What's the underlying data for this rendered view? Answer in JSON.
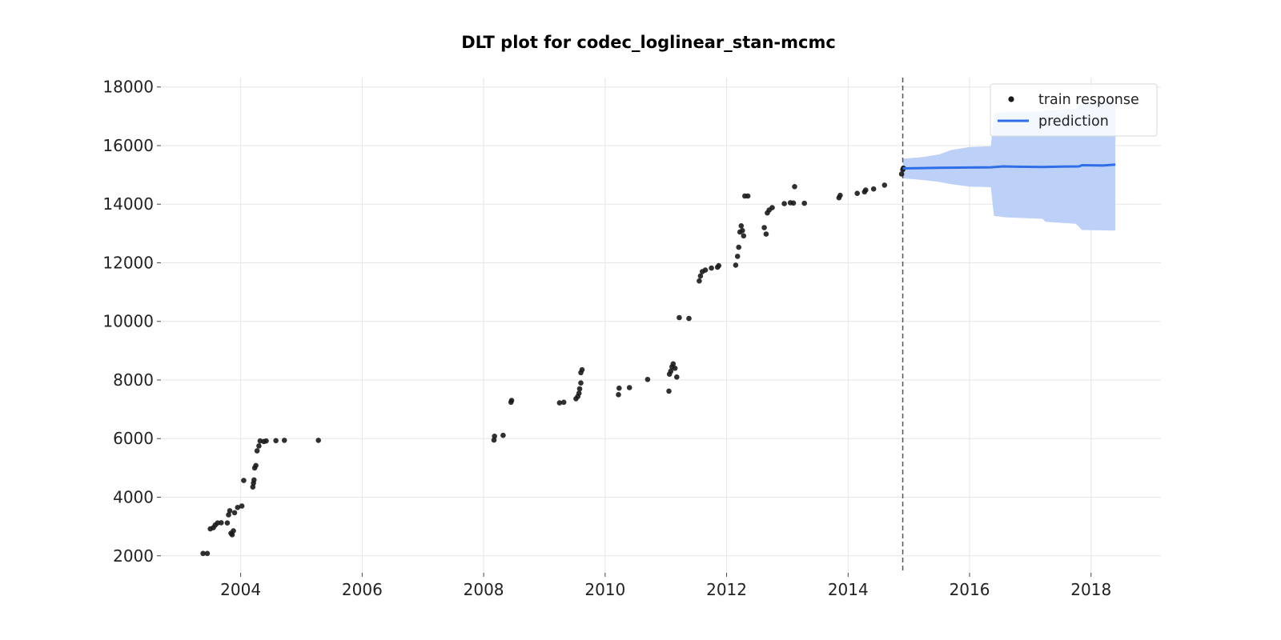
{
  "chart_data": {
    "type": "scatter",
    "title": "DLT plot for codec_loglinear_stan-mcmc",
    "xlabel": "",
    "ylabel": "",
    "xlim": [
      2002.7,
      2019.15
    ],
    "ylim": [
      1420,
      18320
    ],
    "xticks": [
      2004,
      2006,
      2008,
      2010,
      2012,
      2014,
      2016,
      2018
    ],
    "yticks": [
      2000,
      4000,
      6000,
      8000,
      10000,
      12000,
      14000,
      16000,
      18000
    ],
    "grid": true,
    "legend_position": "top-right",
    "split_line_x": 2014.9,
    "colors": {
      "points": "#1a1a1a",
      "prediction": "#2e6ee6",
      "band": "#bcd0f8",
      "split_line": "#555555",
      "grid": "#e6e6e6"
    },
    "series": [
      {
        "name": "train response",
        "type": "scatter",
        "points": [
          [
            2003.38,
            2080
          ],
          [
            2003.45,
            2080
          ],
          [
            2003.5,
            2920
          ],
          [
            2003.55,
            2960
          ],
          [
            2003.58,
            3050
          ],
          [
            2003.62,
            3120
          ],
          [
            2003.68,
            3130
          ],
          [
            2003.78,
            3120
          ],
          [
            2003.8,
            3400
          ],
          [
            2003.82,
            3540
          ],
          [
            2003.84,
            2770
          ],
          [
            2003.86,
            2720
          ],
          [
            2003.88,
            2850
          ],
          [
            2003.9,
            3470
          ],
          [
            2003.95,
            3650
          ],
          [
            2004.02,
            3700
          ],
          [
            2004.05,
            4570
          ],
          [
            2004.2,
            4350
          ],
          [
            2004.21,
            4480
          ],
          [
            2004.22,
            4590
          ],
          [
            2004.23,
            5000
          ],
          [
            2004.25,
            5080
          ],
          [
            2004.27,
            5580
          ],
          [
            2004.3,
            5750
          ],
          [
            2004.32,
            5920
          ],
          [
            2004.38,
            5900
          ],
          [
            2004.42,
            5920
          ],
          [
            2004.58,
            5930
          ],
          [
            2004.72,
            5940
          ],
          [
            2005.28,
            5940
          ],
          [
            2008.17,
            5950
          ],
          [
            2008.18,
            6080
          ],
          [
            2008.32,
            6110
          ],
          [
            2008.45,
            7240
          ],
          [
            2008.46,
            7300
          ],
          [
            2009.25,
            7220
          ],
          [
            2009.32,
            7240
          ],
          [
            2009.52,
            7360
          ],
          [
            2009.55,
            7440
          ],
          [
            2009.57,
            7550
          ],
          [
            2009.58,
            7700
          ],
          [
            2009.6,
            7900
          ],
          [
            2009.6,
            8250
          ],
          [
            2009.62,
            8350
          ],
          [
            2010.22,
            7500
          ],
          [
            2010.23,
            7720
          ],
          [
            2010.4,
            7740
          ],
          [
            2010.7,
            8020
          ],
          [
            2011.05,
            7620
          ],
          [
            2011.06,
            8200
          ],
          [
            2011.08,
            8300
          ],
          [
            2011.1,
            8450
          ],
          [
            2011.12,
            8550
          ],
          [
            2011.15,
            8400
          ],
          [
            2011.18,
            8100
          ],
          [
            2011.22,
            10130
          ],
          [
            2011.38,
            10100
          ],
          [
            2011.55,
            11380
          ],
          [
            2011.57,
            11550
          ],
          [
            2011.6,
            11700
          ],
          [
            2011.65,
            11750
          ],
          [
            2011.75,
            11820
          ],
          [
            2011.85,
            11850
          ],
          [
            2011.87,
            11900
          ],
          [
            2012.15,
            11920
          ],
          [
            2012.18,
            12220
          ],
          [
            2012.2,
            12530
          ],
          [
            2012.22,
            13050
          ],
          [
            2012.24,
            13260
          ],
          [
            2012.26,
            13100
          ],
          [
            2012.28,
            12920
          ],
          [
            2012.3,
            14280
          ],
          [
            2012.35,
            14280
          ],
          [
            2012.62,
            13200
          ],
          [
            2012.65,
            12980
          ],
          [
            2012.67,
            13700
          ],
          [
            2012.7,
            13800
          ],
          [
            2012.75,
            13880
          ],
          [
            2012.95,
            14020
          ],
          [
            2013.05,
            14050
          ],
          [
            2013.1,
            14040
          ],
          [
            2013.12,
            14600
          ],
          [
            2013.28,
            14030
          ],
          [
            2013.85,
            14220
          ],
          [
            2013.87,
            14300
          ],
          [
            2014.15,
            14370
          ],
          [
            2014.27,
            14420
          ],
          [
            2014.29,
            14480
          ],
          [
            2014.42,
            14520
          ],
          [
            2014.6,
            14650
          ],
          [
            2014.88,
            15030
          ],
          [
            2014.9,
            15180
          ],
          [
            2014.91,
            15230
          ]
        ]
      },
      {
        "name": "prediction",
        "type": "line",
        "points": [
          [
            2014.9,
            15220
          ],
          [
            2015.5,
            15240
          ],
          [
            2016.0,
            15250
          ],
          [
            2016.35,
            15260
          ],
          [
            2016.55,
            15290
          ],
          [
            2016.7,
            15280
          ],
          [
            2017.2,
            15270
          ],
          [
            2017.5,
            15280
          ],
          [
            2017.8,
            15290
          ],
          [
            2017.85,
            15330
          ],
          [
            2018.2,
            15320
          ],
          [
            2018.4,
            15350
          ]
        ],
        "band": {
          "name": "prediction interval",
          "x": [
            2014.9,
            2015.2,
            2015.5,
            2015.7,
            2016.0,
            2016.35,
            2016.4,
            2016.6,
            2017.2,
            2017.25,
            2017.75,
            2017.85,
            2018.4
          ],
          "upper": [
            15550,
            15600,
            15700,
            15850,
            15950,
            15980,
            17100,
            17150,
            17160,
            17200,
            17250,
            17500,
            17550
          ],
          "lower": [
            14880,
            14830,
            14760,
            14680,
            14600,
            14580,
            13600,
            13550,
            13500,
            13400,
            13330,
            13120,
            13100
          ]
        }
      }
    ]
  }
}
